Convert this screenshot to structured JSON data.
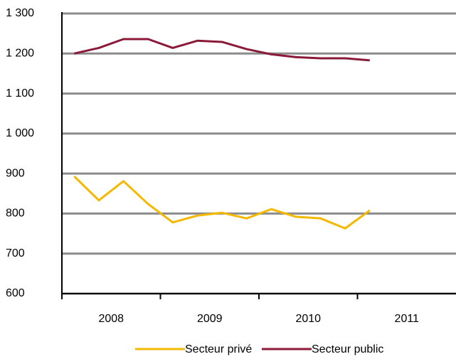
{
  "chart_data": {
    "type": "line",
    "categories": [
      null,
      null,
      null,
      null,
      null,
      null,
      null,
      null,
      null,
      null,
      null,
      null,
      null,
      null,
      null,
      null
    ],
    "year_labels": [
      "2008",
      "2009",
      "2010",
      "2011"
    ],
    "series": [
      {
        "name": "Secteur privé",
        "color": "#f5b800",
        "values": [
          893,
          833,
          881,
          824,
          778,
          795,
          802,
          788,
          811,
          792,
          788,
          763,
          808,
          null,
          null,
          null
        ]
      },
      {
        "name": "Secteur public",
        "color": "#8b1a3a",
        "values": [
          1200,
          1214,
          1236,
          1236,
          1214,
          1232,
          1229,
          1211,
          1198,
          1191,
          1188,
          1188,
          1183,
          null,
          null,
          null
        ]
      }
    ],
    "ylim": [
      600,
      1300
    ],
    "yticks": [
      600,
      700,
      800,
      900,
      {
        "value": 1000,
        "label": "1 000"
      },
      {
        "value": 1100,
        "label": "1 100"
      },
      {
        "value": 1200,
        "label": "1 200"
      },
      {
        "value": 1300,
        "label": "1 300"
      }
    ],
    "grid": true,
    "legend": "bottom"
  }
}
